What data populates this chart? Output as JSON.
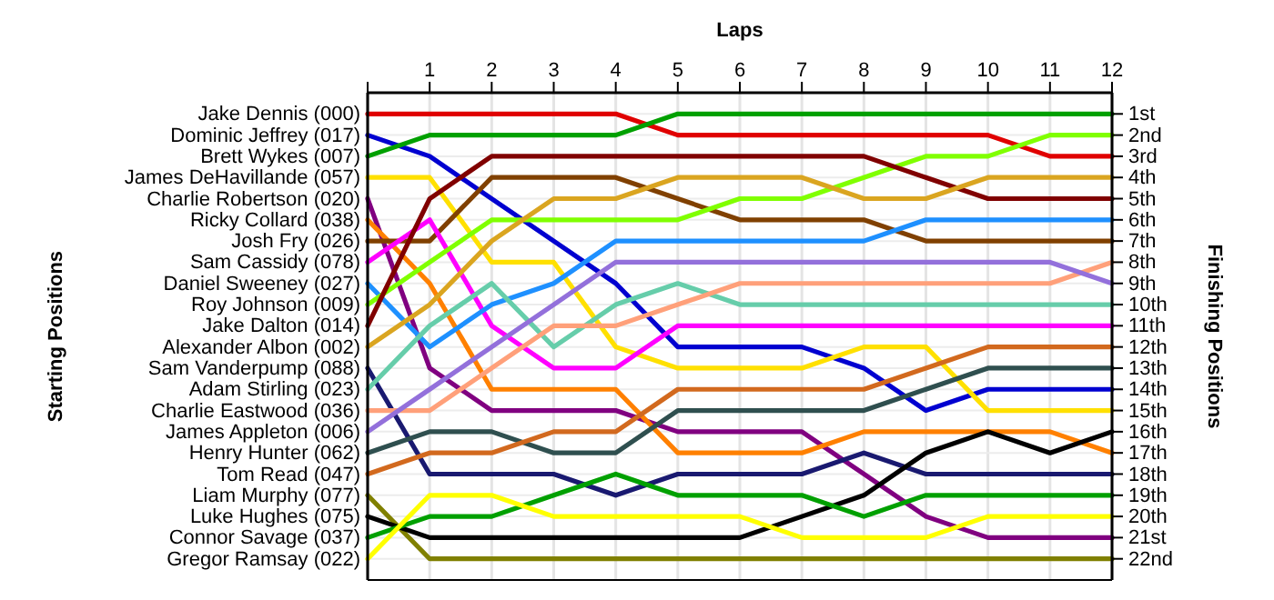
{
  "chart_data": {
    "type": "line",
    "xlabel": "Laps",
    "annotations": [
      "Starting Positions"
    ],
    "y2label": "Finishing Positions",
    "x": [
      0,
      1,
      2,
      3,
      4,
      5,
      6,
      7,
      8,
      9,
      10,
      11,
      12
    ],
    "xlim": [
      0,
      12
    ],
    "xticks": [
      {
        "value": 0,
        "label": null
      },
      1,
      2,
      3,
      4,
      5,
      6,
      7,
      8,
      9,
      10,
      11,
      12
    ],
    "y2lim": [
      23,
      0
    ],
    "y2ticks": [
      {
        "value": 1,
        "label": "1st"
      },
      {
        "value": 2,
        "label": "2nd"
      },
      {
        "value": 3,
        "label": "3rd"
      },
      {
        "value": 4,
        "label": "4th"
      },
      {
        "value": 5,
        "label": "5th"
      },
      {
        "value": 6,
        "label": "6th"
      },
      {
        "value": 7,
        "label": "7th"
      },
      {
        "value": 8,
        "label": "8th"
      },
      {
        "value": 9,
        "label": "9th"
      },
      {
        "value": 10,
        "label": "10th"
      },
      {
        "value": 11,
        "label": "11th"
      },
      {
        "value": 12,
        "label": "12th"
      },
      {
        "value": 13,
        "label": "13th"
      },
      {
        "value": 14,
        "label": "14th"
      },
      {
        "value": 15,
        "label": "15th"
      },
      {
        "value": 16,
        "label": "16th"
      },
      {
        "value": 17,
        "label": "17th"
      },
      {
        "value": 18,
        "label": "18th"
      },
      {
        "value": 19,
        "label": "19th"
      },
      {
        "value": 20,
        "label": "20th"
      },
      {
        "value": 21,
        "label": "21st"
      },
      {
        "value": 22,
        "label": "22nd"
      }
    ],
    "grid": true,
    "line_style": "solid",
    "series": [
      {
        "name": "Jake Dennis (000)",
        "axis": "y2",
        "color": "#e00000",
        "values": [
          1,
          1,
          1,
          1,
          1,
          2,
          2,
          2,
          2,
          2,
          2,
          3,
          3
        ]
      },
      {
        "name": "Dominic Jeffrey (017)",
        "axis": "y2",
        "color": "#0000d0",
        "values": [
          2,
          3,
          5,
          7,
          9,
          12,
          12,
          12,
          13,
          15,
          14,
          14,
          14
        ]
      },
      {
        "name": "Brett Wykes (007)",
        "axis": "y2",
        "color": "#00a000",
        "values": [
          3,
          2,
          2,
          2,
          2,
          1,
          1,
          1,
          1,
          1,
          1,
          1,
          1
        ]
      },
      {
        "name": "James DeHavillande (057)",
        "axis": "y2",
        "color": "#ffe000",
        "values": [
          4,
          4,
          8,
          8,
          12,
          13,
          13,
          13,
          12,
          12,
          15,
          15,
          15
        ]
      },
      {
        "name": "Charlie Robertson (020)",
        "axis": "y2",
        "color": "#800080",
        "values": [
          5,
          13,
          15,
          15,
          15,
          16,
          16,
          16,
          18,
          20,
          21,
          21,
          21
        ]
      },
      {
        "name": "Ricky Collard (038)",
        "axis": "y2",
        "color": "#ff8000",
        "values": [
          6,
          9,
          14,
          14,
          14,
          17,
          17,
          17,
          16,
          16,
          16,
          16,
          17
        ]
      },
      {
        "name": "Josh Fry (026)",
        "axis": "y2",
        "color": "#804000",
        "values": [
          7,
          7,
          4,
          4,
          4,
          5,
          6,
          6,
          6,
          7,
          7,
          7,
          7
        ]
      },
      {
        "name": "Sam Cassidy (078)",
        "axis": "y2",
        "color": "#ff00ff",
        "values": [
          8,
          6,
          11,
          13,
          13,
          11,
          11,
          11,
          11,
          11,
          11,
          11,
          11
        ]
      },
      {
        "name": "Daniel Sweeney (027)",
        "axis": "y2",
        "color": "#1e90ff",
        "values": [
          9,
          12,
          10,
          9,
          7,
          7,
          7,
          7,
          7,
          6,
          6,
          6,
          6
        ]
      },
      {
        "name": "Roy Johnson (009)",
        "axis": "y2",
        "color": "#80ff00",
        "values": [
          10,
          8,
          6,
          6,
          6,
          6,
          5,
          5,
          4,
          3,
          3,
          2,
          2
        ]
      },
      {
        "name": "Jake Dalton (014)",
        "axis": "y2",
        "color": "#800000",
        "values": [
          11,
          5,
          3,
          3,
          3,
          3,
          3,
          3,
          3,
          4,
          5,
          5,
          5
        ]
      },
      {
        "name": "Alexander Albon (002)",
        "axis": "y2",
        "color": "#daa520",
        "values": [
          12,
          10,
          7,
          5,
          5,
          4,
          4,
          4,
          5,
          5,
          4,
          4,
          4
        ]
      },
      {
        "name": "Sam Vanderpump (088)",
        "axis": "y2",
        "color": "#191970",
        "values": [
          13,
          18,
          18,
          18,
          19,
          18,
          18,
          18,
          17,
          18,
          18,
          18,
          18
        ]
      },
      {
        "name": "Adam Stirling (023)",
        "axis": "y2",
        "color": "#66cdaa",
        "values": [
          14,
          11,
          9,
          12,
          10,
          9,
          10,
          10,
          10,
          10,
          10,
          10,
          10
        ]
      },
      {
        "name": "Charlie Eastwood (036)",
        "axis": "y2",
        "color": "#ffa07a",
        "values": [
          15,
          15,
          13,
          11,
          11,
          10,
          9,
          9,
          9,
          9,
          9,
          9,
          8
        ]
      },
      {
        "name": "James Appleton (006)",
        "axis": "y2",
        "color": "#9370db",
        "values": [
          16,
          14,
          12,
          10,
          8,
          8,
          8,
          8,
          8,
          8,
          8,
          8,
          9
        ]
      },
      {
        "name": "Henry Hunter (062)",
        "axis": "y2",
        "color": "#2f4f4f",
        "values": [
          17,
          16,
          16,
          17,
          17,
          15,
          15,
          15,
          15,
          14,
          13,
          13,
          13
        ]
      },
      {
        "name": "Tom Read (047)",
        "axis": "y2",
        "color": "#d2691e",
        "values": [
          18,
          17,
          17,
          16,
          16,
          14,
          14,
          14,
          14,
          13,
          12,
          12,
          12
        ]
      },
      {
        "name": "Liam Murphy (077)",
        "axis": "y2",
        "color": "#808000",
        "values": [
          19,
          22,
          22,
          22,
          22,
          22,
          22,
          22,
          22,
          22,
          22,
          22,
          22
        ]
      },
      {
        "name": "Luke Hughes (075)",
        "axis": "y2",
        "color": "#000000",
        "values": [
          20,
          21,
          21,
          21,
          21,
          21,
          21,
          20,
          19,
          17,
          16,
          17,
          16
        ]
      },
      {
        "name": "Connor Savage (037)",
        "axis": "y2",
        "color": "#00a000",
        "values": [
          21,
          20,
          20,
          19,
          18,
          19,
          19,
          19,
          20,
          19,
          19,
          19,
          19
        ]
      },
      {
        "name": "Gregor Ramsay (022)",
        "axis": "y2",
        "color": "#ffff00",
        "values": [
          22,
          19,
          19,
          20,
          20,
          20,
          20,
          21,
          21,
          21,
          20,
          20,
          20
        ]
      }
    ]
  }
}
